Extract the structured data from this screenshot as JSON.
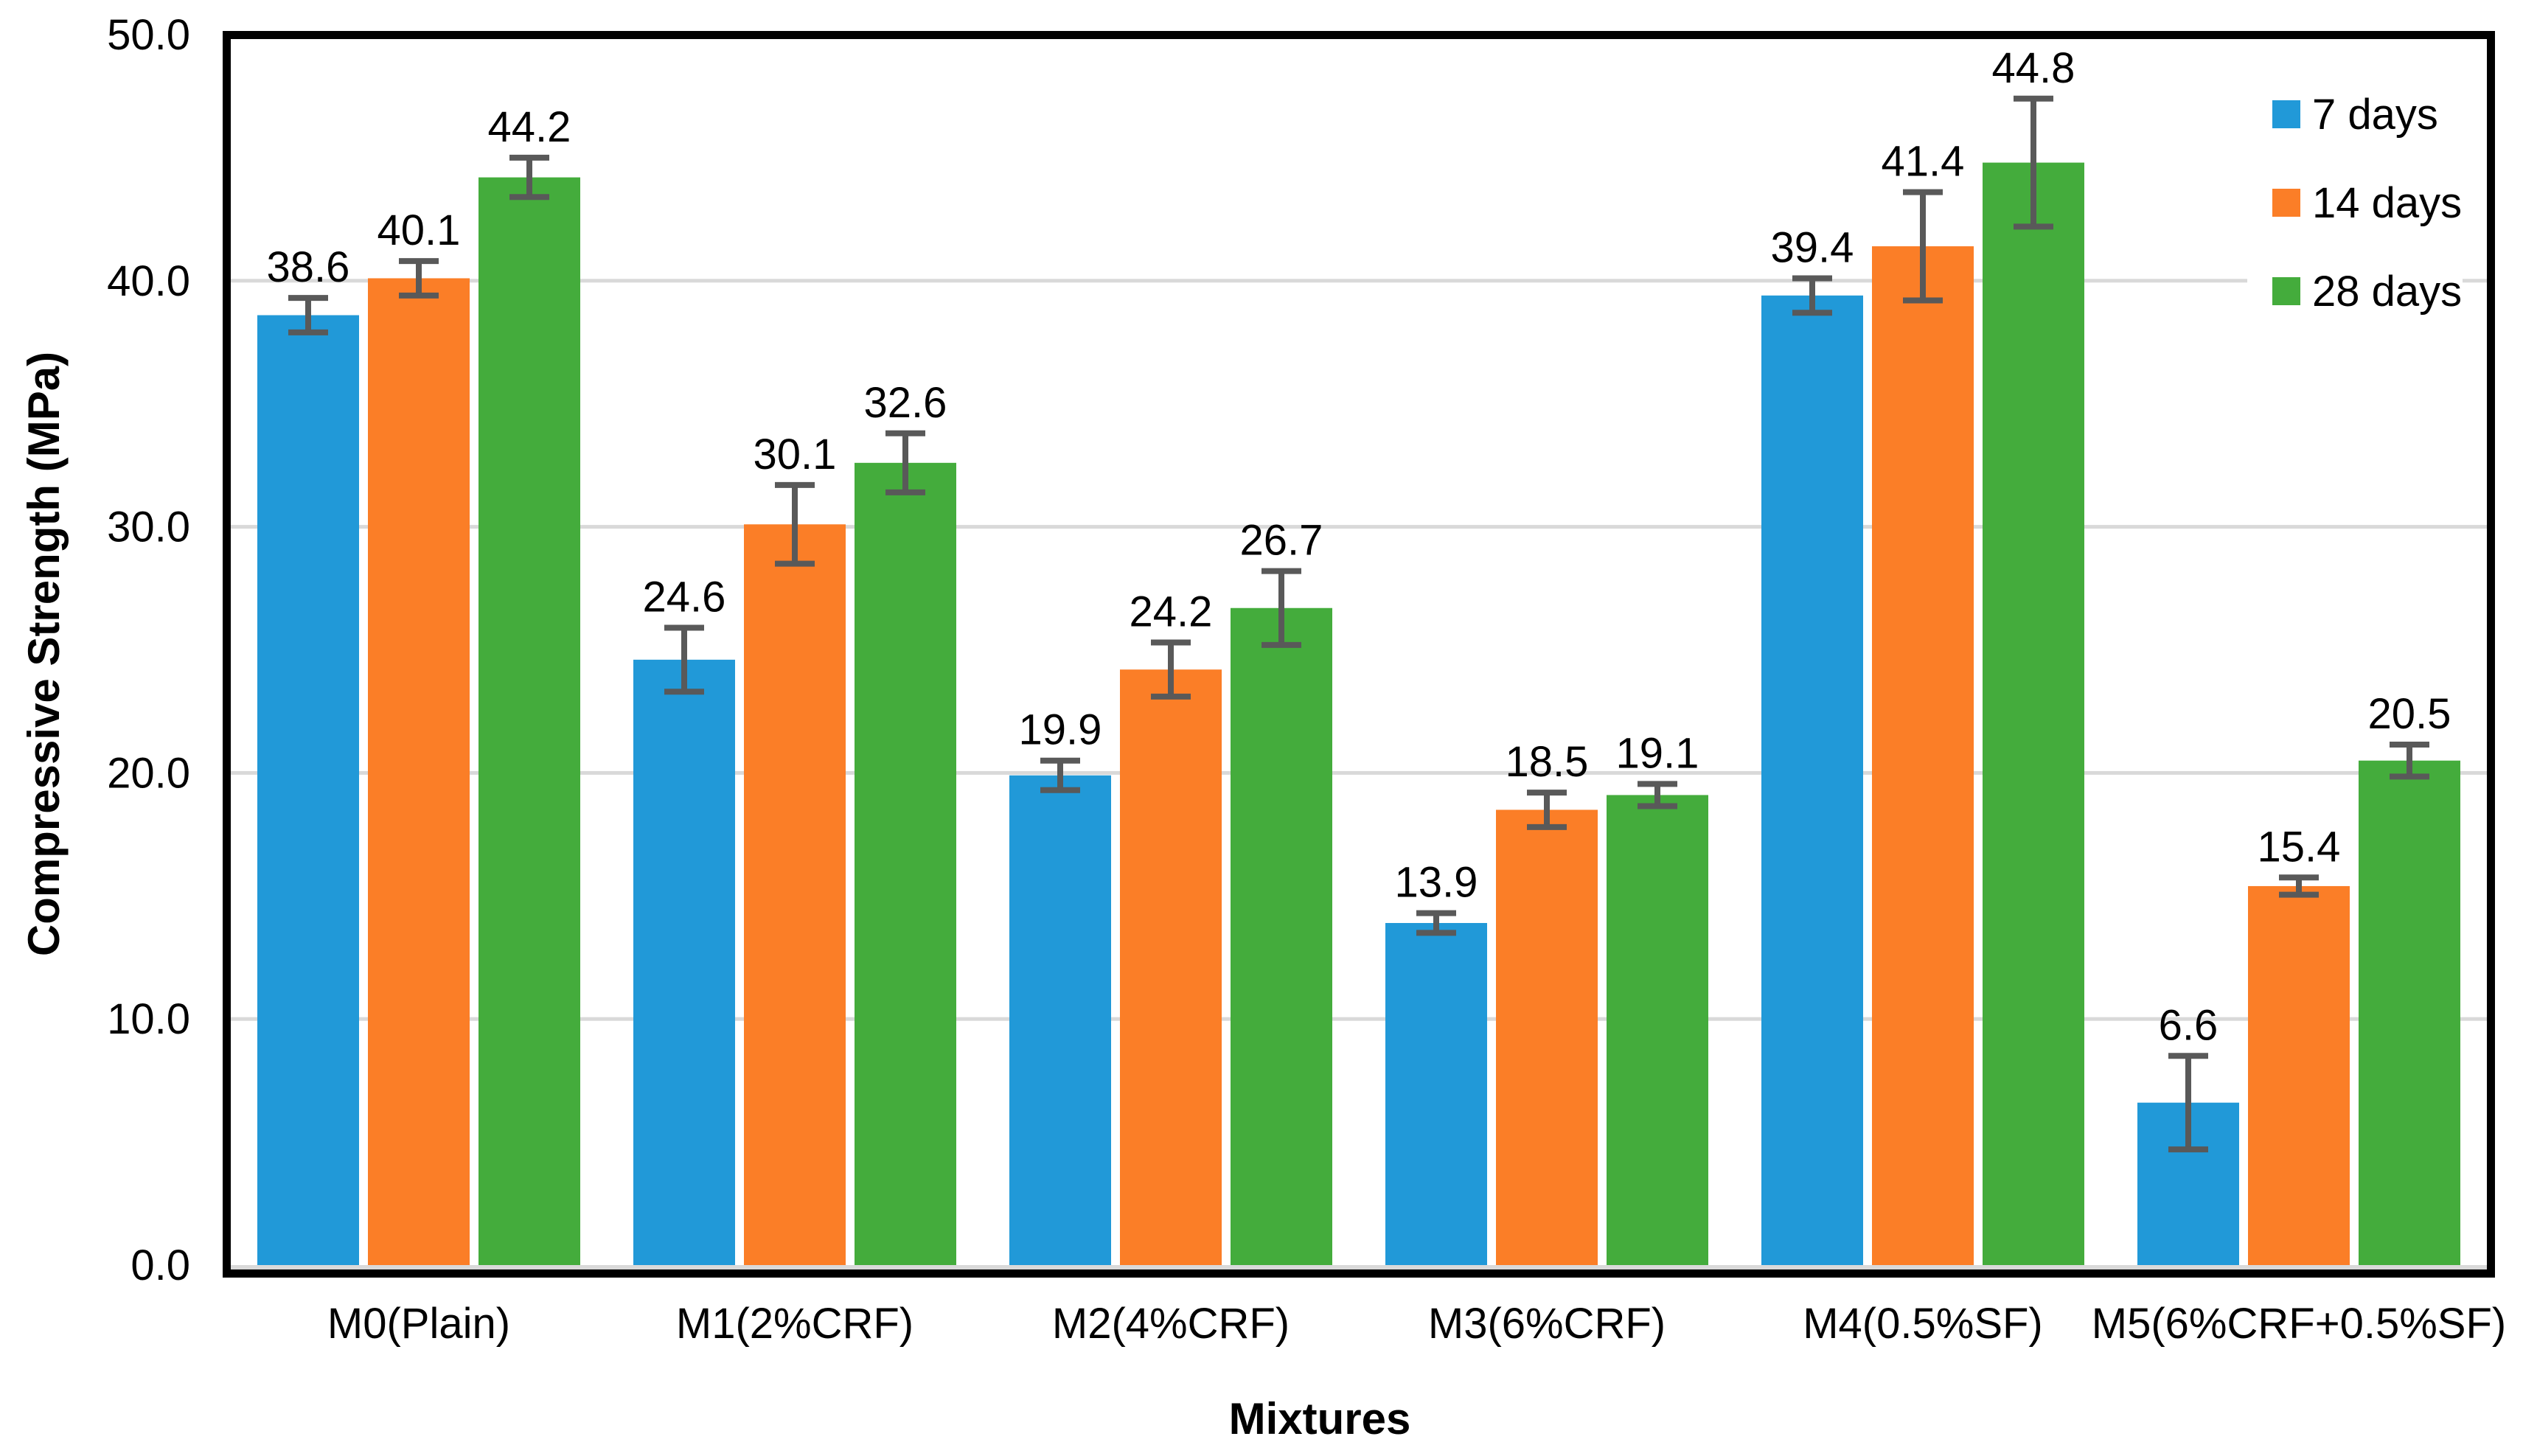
{
  "chart_data": {
    "type": "bar",
    "title": "",
    "xlabel": "Mixtures",
    "ylabel": "Compressive Strength (MPa)",
    "categories": [
      "M0(Plain)",
      "M1(2%CRF)",
      "M2(4%CRF)",
      "M3(6%CRF)",
      "M4(0.5%SF)",
      "M5(6%CRF+0.5%SF)"
    ],
    "series": [
      {
        "name": "7 days",
        "color": "#2199D8",
        "values": [
          38.6,
          24.6,
          19.9,
          13.9,
          39.4,
          6.6
        ],
        "errors": [
          0.7,
          1.3,
          0.6,
          0.4,
          0.7,
          1.9
        ]
      },
      {
        "name": "14 days",
        "color": "#FB7E27",
        "values": [
          40.1,
          30.1,
          24.2,
          18.5,
          41.4,
          15.4
        ],
        "errors": [
          0.7,
          1.6,
          1.1,
          0.7,
          2.2,
          0.35
        ]
      },
      {
        "name": "28 days",
        "color": "#44AC3C",
        "values": [
          44.2,
          32.6,
          26.7,
          19.1,
          44.8,
          20.5
        ],
        "errors": [
          0.8,
          1.2,
          1.5,
          0.45,
          2.6,
          0.65
        ]
      }
    ],
    "value_labels": [
      "38.6",
      "40.1",
      "44.2",
      "24.6",
      "30.1",
      "32.6",
      "19.9",
      "24.2",
      "26.7",
      "13.9",
      "18.5",
      "19.1",
      "39.4",
      "41.4",
      "44.8",
      "6.6",
      "15.4",
      "20.5"
    ],
    "ylim": [
      0,
      50
    ],
    "y_ticks": [
      "0.0",
      "10.0",
      "20.0",
      "30.0",
      "40.0",
      "50.0"
    ],
    "grid": true,
    "error_bars": true,
    "legend_position": "top-right-inside",
    "colors": {
      "gridline": "#D9D9D9",
      "baseline": "#D9D9D9",
      "axis_border": "#000000",
      "error_bar": "#595959",
      "text": "#000000",
      "background": "#FFFFFF"
    }
  }
}
